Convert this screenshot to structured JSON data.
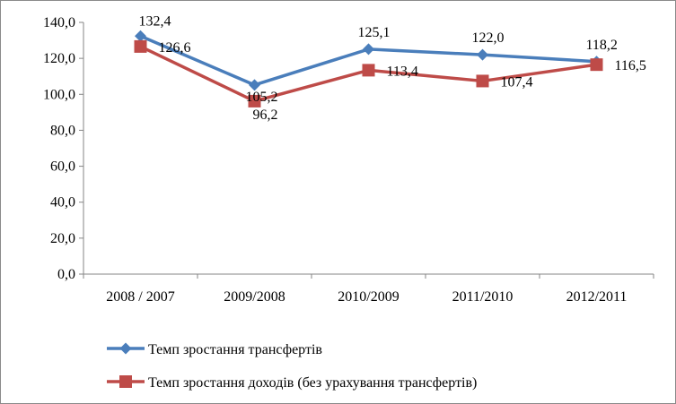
{
  "chart_data": {
    "type": "line",
    "categories": [
      "2008 / 2007",
      "2009/2008",
      "2010/2009",
      "2011/2010",
      "2012/2011"
    ],
    "ylim": [
      0,
      140
    ],
    "yticks": [
      "0,0",
      "20,0",
      "40,0",
      "60,0",
      "80,0",
      "100,0",
      "120,0",
      "140,0"
    ],
    "grid": false,
    "legend_position": "bottom-left",
    "series": [
      {
        "name": "Темп зростання трансфертів",
        "values": [
          132.4,
          105.2,
          125.1,
          122.0,
          118.2
        ],
        "labels": [
          "132,4",
          "105,2",
          "125,1",
          "122,0",
          "118,2"
        ],
        "color": "#4a7ebb",
        "marker": "diamond"
      },
      {
        "name": "Темп зростання доходів (без урахування трансфертів)",
        "values": [
          126.6,
          96.2,
          113.4,
          107.4,
          116.5
        ],
        "labels": [
          "126,6",
          "96,2",
          "113,4",
          "107,4",
          "116,5"
        ],
        "color": "#be4b48",
        "marker": "square"
      }
    ]
  }
}
